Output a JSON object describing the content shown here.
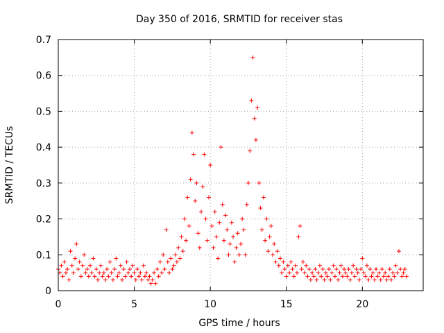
{
  "chart_data": {
    "type": "scatter",
    "title": "Day 350 of 2016, SRMTID for receiver stas",
    "xlabel": "GPS time / hours",
    "ylabel": "SRMTID / TECUs",
    "xlim": [
      0,
      24
    ],
    "ylim": [
      0,
      0.7
    ],
    "x_ticks": [
      0,
      5,
      10,
      15,
      20
    ],
    "x_tick_labels": [
      "0",
      "5",
      "10",
      "15",
      "20"
    ],
    "y_ticks": [
      0,
      0.1,
      0.2,
      0.3,
      0.4,
      0.5,
      0.6,
      0.7
    ],
    "y_tick_labels": [
      "0",
      "0.1",
      "0.2",
      "0.3",
      "0.4",
      "0.5",
      "0.6",
      "0.7"
    ],
    "grid": true,
    "marker": "plus",
    "color": "#ff0000",
    "series": [
      {
        "name": "SRMTID",
        "points": [
          [
            0.0,
            0.06
          ],
          [
            0.1,
            0.05
          ],
          [
            0.2,
            0.07
          ],
          [
            0.3,
            0.04
          ],
          [
            0.4,
            0.08
          ],
          [
            0.5,
            0.05
          ],
          [
            0.6,
            0.06
          ],
          [
            0.7,
            0.03
          ],
          [
            0.8,
            0.11
          ],
          [
            0.9,
            0.07
          ],
          [
            1.0,
            0.05
          ],
          [
            1.1,
            0.09
          ],
          [
            1.2,
            0.13
          ],
          [
            1.3,
            0.06
          ],
          [
            1.4,
            0.08
          ],
          [
            1.5,
            0.04
          ],
          [
            1.6,
            0.07
          ],
          [
            1.7,
            0.1
          ],
          [
            1.8,
            0.05
          ],
          [
            1.9,
            0.06
          ],
          [
            2.0,
            0.04
          ],
          [
            2.1,
            0.07
          ],
          [
            2.2,
            0.05
          ],
          [
            2.3,
            0.09
          ],
          [
            2.4,
            0.04
          ],
          [
            2.5,
            0.06
          ],
          [
            2.6,
            0.03
          ],
          [
            2.7,
            0.05
          ],
          [
            2.8,
            0.07
          ],
          [
            2.9,
            0.04
          ],
          [
            3.0,
            0.05
          ],
          [
            3.1,
            0.03
          ],
          [
            3.2,
            0.06
          ],
          [
            3.3,
            0.04
          ],
          [
            3.4,
            0.08
          ],
          [
            3.5,
            0.05
          ],
          [
            3.6,
            0.03
          ],
          [
            3.7,
            0.06
          ],
          [
            3.8,
            0.09
          ],
          [
            3.9,
            0.04
          ],
          [
            4.0,
            0.05
          ],
          [
            4.1,
            0.07
          ],
          [
            4.2,
            0.03
          ],
          [
            4.3,
            0.06
          ],
          [
            4.4,
            0.04
          ],
          [
            4.5,
            0.08
          ],
          [
            4.6,
            0.05
          ],
          [
            4.7,
            0.06
          ],
          [
            4.8,
            0.04
          ],
          [
            4.9,
            0.07
          ],
          [
            5.0,
            0.05
          ],
          [
            5.1,
            0.03
          ],
          [
            5.2,
            0.06
          ],
          [
            5.3,
            0.04
          ],
          [
            5.4,
            0.05
          ],
          [
            5.5,
            0.03
          ],
          [
            5.6,
            0.07
          ],
          [
            5.7,
            0.04
          ],
          [
            5.8,
            0.05
          ],
          [
            5.9,
            0.03
          ],
          [
            6.0,
            0.04
          ],
          [
            6.1,
            0.02
          ],
          [
            6.2,
            0.03
          ],
          [
            6.3,
            0.05
          ],
          [
            6.4,
            0.02
          ],
          [
            6.5,
            0.06
          ],
          [
            6.6,
            0.04
          ],
          [
            6.7,
            0.08
          ],
          [
            6.8,
            0.05
          ],
          [
            6.9,
            0.1
          ],
          [
            7.0,
            0.06
          ],
          [
            7.1,
            0.17
          ],
          [
            7.2,
            0.08
          ],
          [
            7.3,
            0.05
          ],
          [
            7.4,
            0.09
          ],
          [
            7.5,
            0.06
          ],
          [
            7.6,
            0.07
          ],
          [
            7.7,
            0.1
          ],
          [
            7.8,
            0.08
          ],
          [
            7.9,
            0.12
          ],
          [
            8.0,
            0.09
          ],
          [
            8.1,
            0.15
          ],
          [
            8.2,
            0.11
          ],
          [
            8.3,
            0.2
          ],
          [
            8.4,
            0.14
          ],
          [
            8.5,
            0.26
          ],
          [
            8.6,
            0.18
          ],
          [
            8.7,
            0.31
          ],
          [
            8.8,
            0.44
          ],
          [
            8.9,
            0.38
          ],
          [
            9.0,
            0.25
          ],
          [
            9.1,
            0.3
          ],
          [
            9.2,
            0.16
          ],
          [
            9.3,
            0.12
          ],
          [
            9.4,
            0.22
          ],
          [
            9.5,
            0.29
          ],
          [
            9.6,
            0.38
          ],
          [
            9.7,
            0.2
          ],
          [
            9.8,
            0.14
          ],
          [
            9.9,
            0.26
          ],
          [
            10.0,
            0.35
          ],
          [
            10.1,
            0.18
          ],
          [
            10.2,
            0.12
          ],
          [
            10.3,
            0.22
          ],
          [
            10.4,
            0.15
          ],
          [
            10.5,
            0.09
          ],
          [
            10.6,
            0.19
          ],
          [
            10.7,
            0.4
          ],
          [
            10.8,
            0.24
          ],
          [
            10.9,
            0.14
          ],
          [
            11.0,
            0.21
          ],
          [
            11.1,
            0.17
          ],
          [
            11.2,
            0.1
          ],
          [
            11.3,
            0.13
          ],
          [
            11.4,
            0.19
          ],
          [
            11.5,
            0.15
          ],
          [
            11.6,
            0.08
          ],
          [
            11.7,
            0.12
          ],
          [
            11.8,
            0.16
          ],
          [
            11.9,
            0.1
          ],
          [
            12.0,
            0.13
          ],
          [
            12.1,
            0.2
          ],
          [
            12.2,
            0.17
          ],
          [
            12.3,
            0.1
          ],
          [
            12.4,
            0.24
          ],
          [
            12.5,
            0.3
          ],
          [
            12.6,
            0.39
          ],
          [
            12.7,
            0.53
          ],
          [
            12.8,
            0.65
          ],
          [
            12.9,
            0.48
          ],
          [
            13.0,
            0.42
          ],
          [
            13.1,
            0.51
          ],
          [
            13.2,
            0.3
          ],
          [
            13.3,
            0.23
          ],
          [
            13.4,
            0.17
          ],
          [
            13.5,
            0.26
          ],
          [
            13.6,
            0.14
          ],
          [
            13.7,
            0.2
          ],
          [
            13.8,
            0.11
          ],
          [
            13.9,
            0.15
          ],
          [
            14.0,
            0.18
          ],
          [
            14.1,
            0.1
          ],
          [
            14.2,
            0.13
          ],
          [
            14.3,
            0.08
          ],
          [
            14.4,
            0.11
          ],
          [
            14.5,
            0.07
          ],
          [
            14.6,
            0.09
          ],
          [
            14.7,
            0.05
          ],
          [
            14.8,
            0.08
          ],
          [
            14.9,
            0.06
          ],
          [
            15.0,
            0.04
          ],
          [
            15.1,
            0.07
          ],
          [
            15.2,
            0.05
          ],
          [
            15.3,
            0.08
          ],
          [
            15.4,
            0.06
          ],
          [
            15.5,
            0.04
          ],
          [
            15.6,
            0.07
          ],
          [
            15.7,
            0.05
          ],
          [
            15.8,
            0.15
          ],
          [
            15.9,
            0.18
          ],
          [
            16.0,
            0.06
          ],
          [
            16.1,
            0.08
          ],
          [
            16.2,
            0.05
          ],
          [
            16.3,
            0.07
          ],
          [
            16.4,
            0.04
          ],
          [
            16.5,
            0.06
          ],
          [
            16.6,
            0.03
          ],
          [
            16.7,
            0.05
          ],
          [
            16.8,
            0.04
          ],
          [
            16.9,
            0.06
          ],
          [
            17.0,
            0.03
          ],
          [
            17.1,
            0.05
          ],
          [
            17.2,
            0.07
          ],
          [
            17.3,
            0.04
          ],
          [
            17.4,
            0.06
          ],
          [
            17.5,
            0.03
          ],
          [
            17.6,
            0.05
          ],
          [
            17.7,
            0.04
          ],
          [
            17.8,
            0.06
          ],
          [
            17.9,
            0.03
          ],
          [
            18.0,
            0.05
          ],
          [
            18.1,
            0.07
          ],
          [
            18.2,
            0.04
          ],
          [
            18.3,
            0.06
          ],
          [
            18.4,
            0.03
          ],
          [
            18.5,
            0.05
          ],
          [
            18.6,
            0.07
          ],
          [
            18.7,
            0.04
          ],
          [
            18.8,
            0.06
          ],
          [
            18.9,
            0.05
          ],
          [
            19.0,
            0.04
          ],
          [
            19.1,
            0.06
          ],
          [
            19.2,
            0.03
          ],
          [
            19.3,
            0.05
          ],
          [
            19.4,
            0.07
          ],
          [
            19.5,
            0.04
          ],
          [
            19.6,
            0.06
          ],
          [
            19.7,
            0.05
          ],
          [
            19.8,
            0.03
          ],
          [
            19.9,
            0.06
          ],
          [
            20.0,
            0.09
          ],
          [
            20.1,
            0.05
          ],
          [
            20.2,
            0.04
          ],
          [
            20.3,
            0.07
          ],
          [
            20.4,
            0.03
          ],
          [
            20.5,
            0.06
          ],
          [
            20.6,
            0.04
          ],
          [
            20.7,
            0.05
          ],
          [
            20.8,
            0.03
          ],
          [
            20.9,
            0.06
          ],
          [
            21.0,
            0.04
          ],
          [
            21.1,
            0.05
          ],
          [
            21.2,
            0.03
          ],
          [
            21.3,
            0.06
          ],
          [
            21.4,
            0.04
          ],
          [
            21.5,
            0.05
          ],
          [
            21.6,
            0.03
          ],
          [
            21.7,
            0.04
          ],
          [
            21.8,
            0.06
          ],
          [
            21.9,
            0.03
          ],
          [
            22.0,
            0.05
          ],
          [
            22.1,
            0.04
          ],
          [
            22.2,
            0.07
          ],
          [
            22.3,
            0.05
          ],
          [
            22.4,
            0.11
          ],
          [
            22.5,
            0.06
          ],
          [
            22.6,
            0.04
          ],
          [
            22.7,
            0.05
          ],
          [
            22.8,
            0.06
          ],
          [
            22.9,
            0.04
          ]
        ]
      }
    ]
  }
}
